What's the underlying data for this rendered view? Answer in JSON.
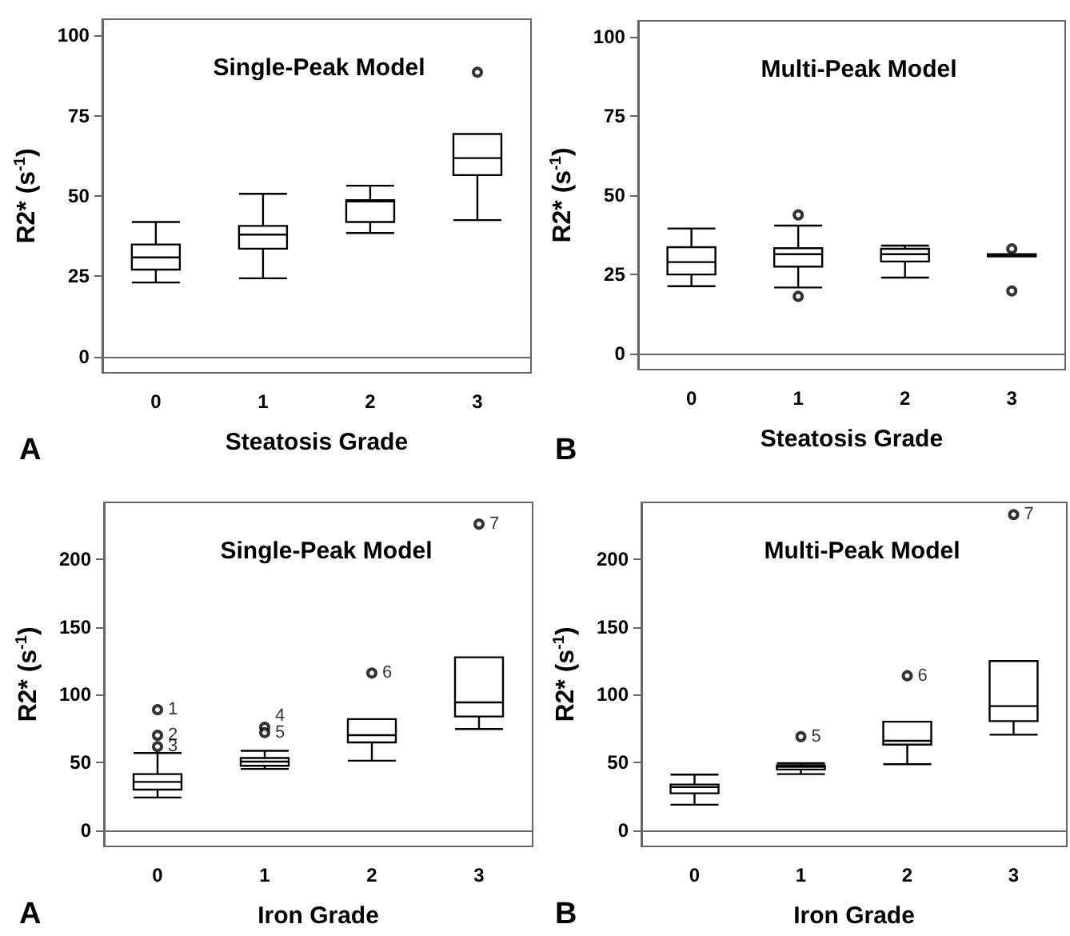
{
  "chart_data": [
    {
      "type": "box",
      "title": "Single-Peak Model",
      "xlabel": "Steatosis Grade",
      "ylabel": "R2* (s$^{-1}$)",
      "categories": [
        "0",
        "1",
        "2",
        "3"
      ],
      "ylim": [
        -5,
        105
      ],
      "yticks": [
        0,
        25,
        50,
        75,
        100
      ],
      "series": [
        {
          "color": "#000000",
          "boxes": [
            {
              "low": 23.1,
              "q1": 27.1,
              "median": 30.9,
              "q3": 34.9,
              "high": 41.9
            },
            {
              "low": 24.4,
              "q1": 33.6,
              "median": 38,
              "q3": 40.7,
              "high": 50.7
            },
            {
              "low": 38.5,
              "q1": 41.9,
              "median": 48.3,
              "q3": 48.7,
              "high": 53.2
            },
            {
              "low": 42.5,
              "q1": 56.5,
              "median": 61.8,
              "q3": 69.3,
              "high": 69.3,
              "outliers": [
                88.5
              ]
            }
          ]
        }
      ],
      "annotations": [
        "A"
      ]
    },
    {
      "type": "box",
      "title": "Multi-Peak Model",
      "xlabel": "Steatosis Grade",
      "ylabel": "R2* (s$^{-1}$)",
      "categories": [
        "0",
        "1",
        "2",
        "3"
      ],
      "ylim": [
        -5,
        105
      ],
      "yticks": [
        0,
        25,
        50,
        75,
        100
      ],
      "series": [
        {
          "color": "#000000",
          "boxes": [
            {
              "low": 21.3,
              "q1": 25,
              "median": 28.9,
              "q3": 33.6,
              "high": 39.5
            },
            {
              "low": 20.9,
              "q1": 27.5,
              "median": 31.4,
              "q3": 33.3,
              "high": 40.4,
              "outliers": [
                43.8,
                18.1
              ]
            },
            {
              "low": 24,
              "q1": 29.1,
              "median": 31.4,
              "q3": 33.1,
              "high": 34.1
            },
            {
              "low": 30.7,
              "q1": 30.7,
              "median": 31.1,
              "q3": 31.4,
              "high": 31.4,
              "outliers": [
                33.1,
                19.8
              ]
            }
          ]
        }
      ],
      "annotations": [
        "B"
      ]
    },
    {
      "type": "box",
      "title": "Single-Peak Model",
      "xlabel": "Iron Grade",
      "ylabel": "R2* (s$^{-1}$)",
      "categories": [
        "0",
        "1",
        "2",
        "3"
      ],
      "ylim": [
        -12,
        242
      ],
      "yticks": [
        0,
        50,
        100,
        150,
        200
      ],
      "series": [
        {
          "color": "#000000",
          "boxes": [
            {
              "low": 24.1,
              "q1": 29.9,
              "median": 35.6,
              "q3": 41.4,
              "high": 57,
              "outliers": [
                88.9,
                70,
                61.7
              ]
            },
            {
              "low": 45.2,
              "q1": 47.5,
              "median": 50.6,
              "q3": 53.3,
              "high": 58.6,
              "outliers": [
                76,
                72
              ]
            },
            {
              "low": 51.3,
              "q1": 64.8,
              "median": 70.1,
              "q3": 82,
              "high": 82,
              "outliers": [
                116
              ]
            },
            {
              "low": 74.7,
              "q1": 83.9,
              "median": 94.3,
              "q3": 127.6,
              "high": 127.6,
              "outliers": [
                226
              ]
            }
          ]
        }
      ],
      "annotations": [
        "A",
        "1",
        "2",
        "3",
        "4",
        "5",
        "6",
        "7"
      ]
    },
    {
      "type": "box",
      "title": "Multi-Peak Model",
      "xlabel": "Iron Grade",
      "ylabel": "R2* (s$^{-1}$)",
      "categories": [
        "0",
        "1",
        "2",
        "3"
      ],
      "ylim": [
        -12,
        242
      ],
      "yticks": [
        0,
        50,
        100,
        150,
        200
      ],
      "series": [
        {
          "color": "#000000",
          "boxes": [
            {
              "low": 18.8,
              "q1": 27.2,
              "median": 31.8,
              "q3": 33.7,
              "high": 41
            },
            {
              "low": 41.4,
              "q1": 44.8,
              "median": 46.7,
              "q3": 47.9,
              "high": 49.4,
              "outliers": [
                69
              ]
            },
            {
              "low": 48.7,
              "q1": 63.2,
              "median": 66,
              "q3": 80.1,
              "high": 80.1,
              "outliers": [
                114
              ]
            },
            {
              "low": 70.5,
              "q1": 80.5,
              "median": 91.6,
              "q3": 124.9,
              "high": 124.9,
              "outliers": [
                233
              ]
            }
          ]
        }
      ],
      "annotations": [
        "B",
        "5",
        "6",
        "7"
      ]
    }
  ]
}
